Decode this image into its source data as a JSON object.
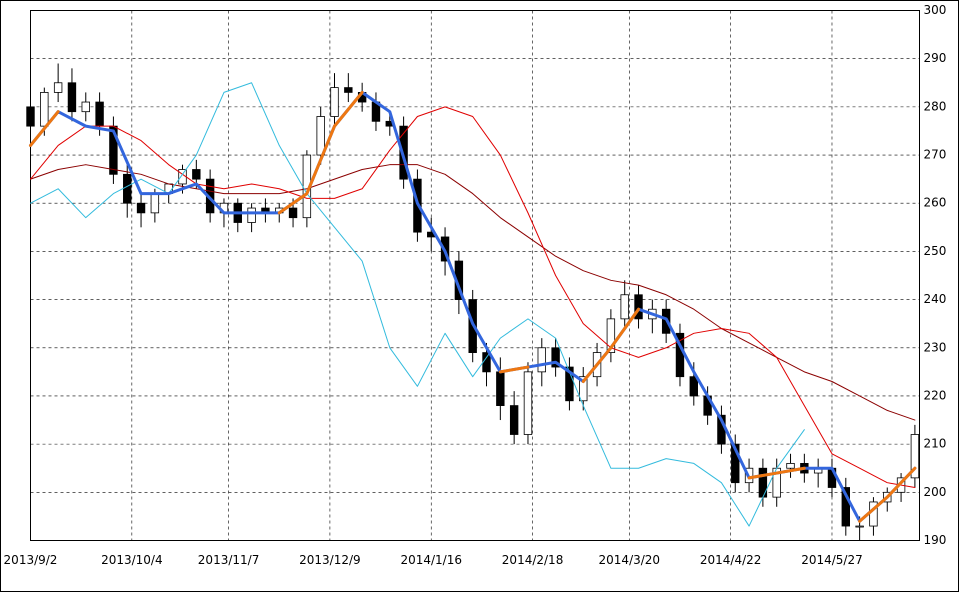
{
  "chart_data": {
    "type": "candlestick",
    "x": [
      0,
      3,
      6,
      9,
      12,
      15,
      18,
      21,
      24,
      27,
      30,
      33,
      36,
      39,
      42,
      45,
      48,
      51,
      54,
      57,
      60,
      63,
      66,
      69,
      72,
      75,
      78,
      81,
      84,
      87,
      90,
      93,
      96,
      99,
      102,
      105,
      108,
      111,
      114,
      117,
      120,
      123,
      126,
      129,
      132,
      135,
      138,
      141,
      144,
      147,
      150,
      153,
      156,
      159,
      162,
      165,
      168,
      171,
      174,
      177,
      180,
      183,
      186,
      189,
      192
    ],
    "open": [
      280,
      276,
      283,
      285,
      279,
      281,
      276,
      266,
      260,
      258,
      262,
      264,
      267,
      265,
      258,
      260,
      256,
      259,
      258,
      259,
      257,
      270,
      278,
      284,
      283,
      281,
      277,
      276,
      265,
      254,
      253,
      248,
      240,
      229,
      225,
      218,
      212,
      225,
      230,
      226,
      219,
      224,
      229,
      236,
      241,
      236,
      238,
      233,
      224,
      220,
      216,
      210,
      202,
      205,
      199,
      205,
      206,
      204,
      205,
      201,
      193,
      193,
      198,
      200,
      203
    ],
    "high": [
      282,
      284,
      289,
      288,
      283,
      283,
      278,
      268,
      262,
      263,
      264,
      268,
      269,
      267,
      261,
      261,
      260,
      261,
      260,
      261,
      271,
      280,
      287,
      287,
      285,
      283,
      279,
      278,
      267,
      257,
      255,
      250,
      242,
      231,
      228,
      221,
      227,
      232,
      232,
      228,
      226,
      231,
      238,
      244,
      243,
      240,
      240,
      235,
      227,
      222,
      218,
      212,
      207,
      207,
      207,
      208,
      208,
      207,
      207,
      203,
      195,
      199,
      201,
      204,
      214
    ],
    "low": [
      274,
      274,
      281,
      277,
      277,
      274,
      264,
      257,
      255,
      256,
      260,
      262,
      263,
      256,
      255,
      254,
      254,
      256,
      256,
      255,
      255,
      268,
      276,
      281,
      279,
      275,
      274,
      263,
      252,
      250,
      245,
      237,
      227,
      222,
      215,
      210,
      210,
      222,
      224,
      217,
      217,
      222,
      227,
      234,
      234,
      233,
      231,
      222,
      218,
      214,
      208,
      200,
      200,
      197,
      197,
      203,
      202,
      201,
      199,
      191,
      190,
      191,
      196,
      198,
      201
    ],
    "close": [
      276,
      283,
      285,
      279,
      281,
      276,
      266,
      260,
      258,
      262,
      264,
      267,
      265,
      258,
      260,
      256,
      259,
      258,
      259,
      257,
      270,
      278,
      284,
      283,
      281,
      277,
      276,
      265,
      254,
      253,
      248,
      240,
      229,
      225,
      218,
      212,
      225,
      230,
      226,
      219,
      224,
      229,
      236,
      241,
      236,
      238,
      233,
      224,
      220,
      216,
      210,
      202,
      205,
      199,
      205,
      206,
      204,
      205,
      201,
      193,
      193,
      198,
      200,
      203,
      212
    ],
    "up_color": "#ffffff",
    "down_color": "#000000",
    "line_x": [
      0,
      6,
      12,
      18,
      24,
      30,
      36,
      42,
      48,
      54,
      60,
      66,
      72,
      78,
      84,
      90,
      96,
      102,
      108,
      114,
      120,
      126,
      132,
      138,
      144,
      150,
      156,
      162,
      168,
      174,
      180,
      186,
      192
    ],
    "lines": [
      {
        "color": "#8b0000",
        "values": [
          265,
          267,
          268,
          267,
          266,
          264,
          263,
          262,
          262,
          262,
          263,
          265,
          267,
          268,
          268,
          266,
          262,
          257,
          253,
          249,
          246,
          244,
          243,
          241,
          238,
          234,
          231,
          228,
          225,
          223,
          220,
          217,
          215
        ]
      },
      {
        "color": "#e00000",
        "values": [
          265,
          272,
          276,
          276,
          273,
          268,
          264,
          263,
          264,
          263,
          261,
          261,
          263,
          271,
          278,
          280,
          278,
          270,
          258,
          245,
          235,
          230,
          228,
          230,
          233,
          234,
          233,
          228,
          218,
          208,
          205,
          202,
          201
        ]
      },
      {
        "color": "#33bbdd",
        "values": [
          260,
          263,
          257,
          262,
          265,
          262,
          270,
          283,
          285,
          272,
          262,
          255,
          248,
          230,
          222,
          233,
          224,
          232,
          236,
          232,
          218,
          205,
          205,
          207,
          206,
          202,
          193,
          205,
          213,
          null,
          null,
          null,
          null
        ]
      },
      {
        "color": "#3366dd",
        "values": [
          272,
          279,
          276,
          275,
          262,
          262,
          264,
          258,
          258,
          258,
          262,
          276,
          283,
          279,
          260,
          250,
          235,
          225,
          226,
          227,
          223,
          230,
          238,
          236,
          225,
          215,
          203,
          204,
          205,
          205,
          194,
          199,
          205
        ]
      },
      {
        "color": "#ee7711",
        "values": [
          272,
          279,
          null,
          null,
          null,
          null,
          null,
          null,
          null,
          258,
          262,
          276,
          283,
          null,
          null,
          null,
          null,
          225,
          226,
          null,
          223,
          230,
          238,
          null,
          null,
          null,
          203,
          204,
          205,
          null,
          194,
          199,
          205
        ]
      }
    ],
    "xlim": [
      0,
      193
    ],
    "xticks": [
      {
        "value": 0,
        "label": "2013/9/2"
      },
      {
        "value": 22,
        "label": "2013/10/4"
      },
      {
        "value": 43,
        "label": "2013/11/7"
      },
      {
        "value": 65,
        "label": "2013/12/9"
      },
      {
        "value": 87,
        "label": "2014/1/16"
      },
      {
        "value": 109,
        "label": "2014/2/18"
      },
      {
        "value": 130,
        "label": "2014/3/20"
      },
      {
        "value": 152,
        "label": "2014/4/22"
      },
      {
        "value": 174,
        "label": "2014/5/27"
      }
    ],
    "ylim": [
      190,
      300
    ],
    "yticks": [
      190,
      200,
      210,
      220,
      230,
      240,
      250,
      260,
      270,
      280,
      290,
      300
    ],
    "grid": true
  }
}
